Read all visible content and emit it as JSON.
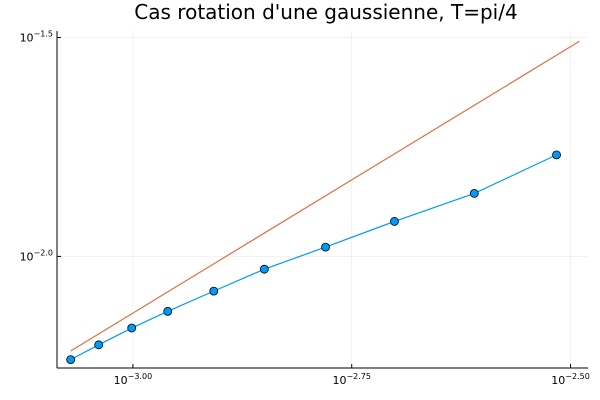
{
  "chart_data": {
    "type": "line",
    "title": "Cas rotation d'une gaussienne, T=pi/4",
    "xlabel": "",
    "ylabel": "",
    "xscale": "log10",
    "yscale": "log10",
    "xlim": [
      0.000819,
      0.003311
    ],
    "ylim": [
      0.005559,
      0.032734
    ],
    "xticks": [
      {
        "value": 0.001,
        "base": "10",
        "exp": "−3.00"
      },
      {
        "value": 0.0017783,
        "base": "10",
        "exp": "−2.75"
      },
      {
        "value": 0.0031623,
        "base": "10",
        "exp": "−2.50"
      }
    ],
    "yticks": [
      {
        "value": 0.01,
        "base": "10",
        "exp": "−2.0"
      },
      {
        "value": 0.0316228,
        "base": "10",
        "exp": "−1.5"
      }
    ],
    "grid": true,
    "legend": "none",
    "series": [
      {
        "color": "#009af9",
        "markers": true,
        "x": [
          0.000849,
          0.000914,
          0.000997,
          0.001096,
          0.001237,
          0.001413,
          0.00166,
          0.00199,
          0.002455,
          0.003048
        ],
        "y": [
          0.00581,
          0.00628,
          0.00686,
          0.00749,
          0.00833,
          0.00935,
          0.0105,
          0.01202,
          0.01393,
          0.01706
        ]
      },
      {
        "color": "#e26f46",
        "markers": false,
        "x": [
          0.000849,
          0.003237
        ],
        "y": [
          0.00608,
          0.03101
        ]
      }
    ]
  }
}
